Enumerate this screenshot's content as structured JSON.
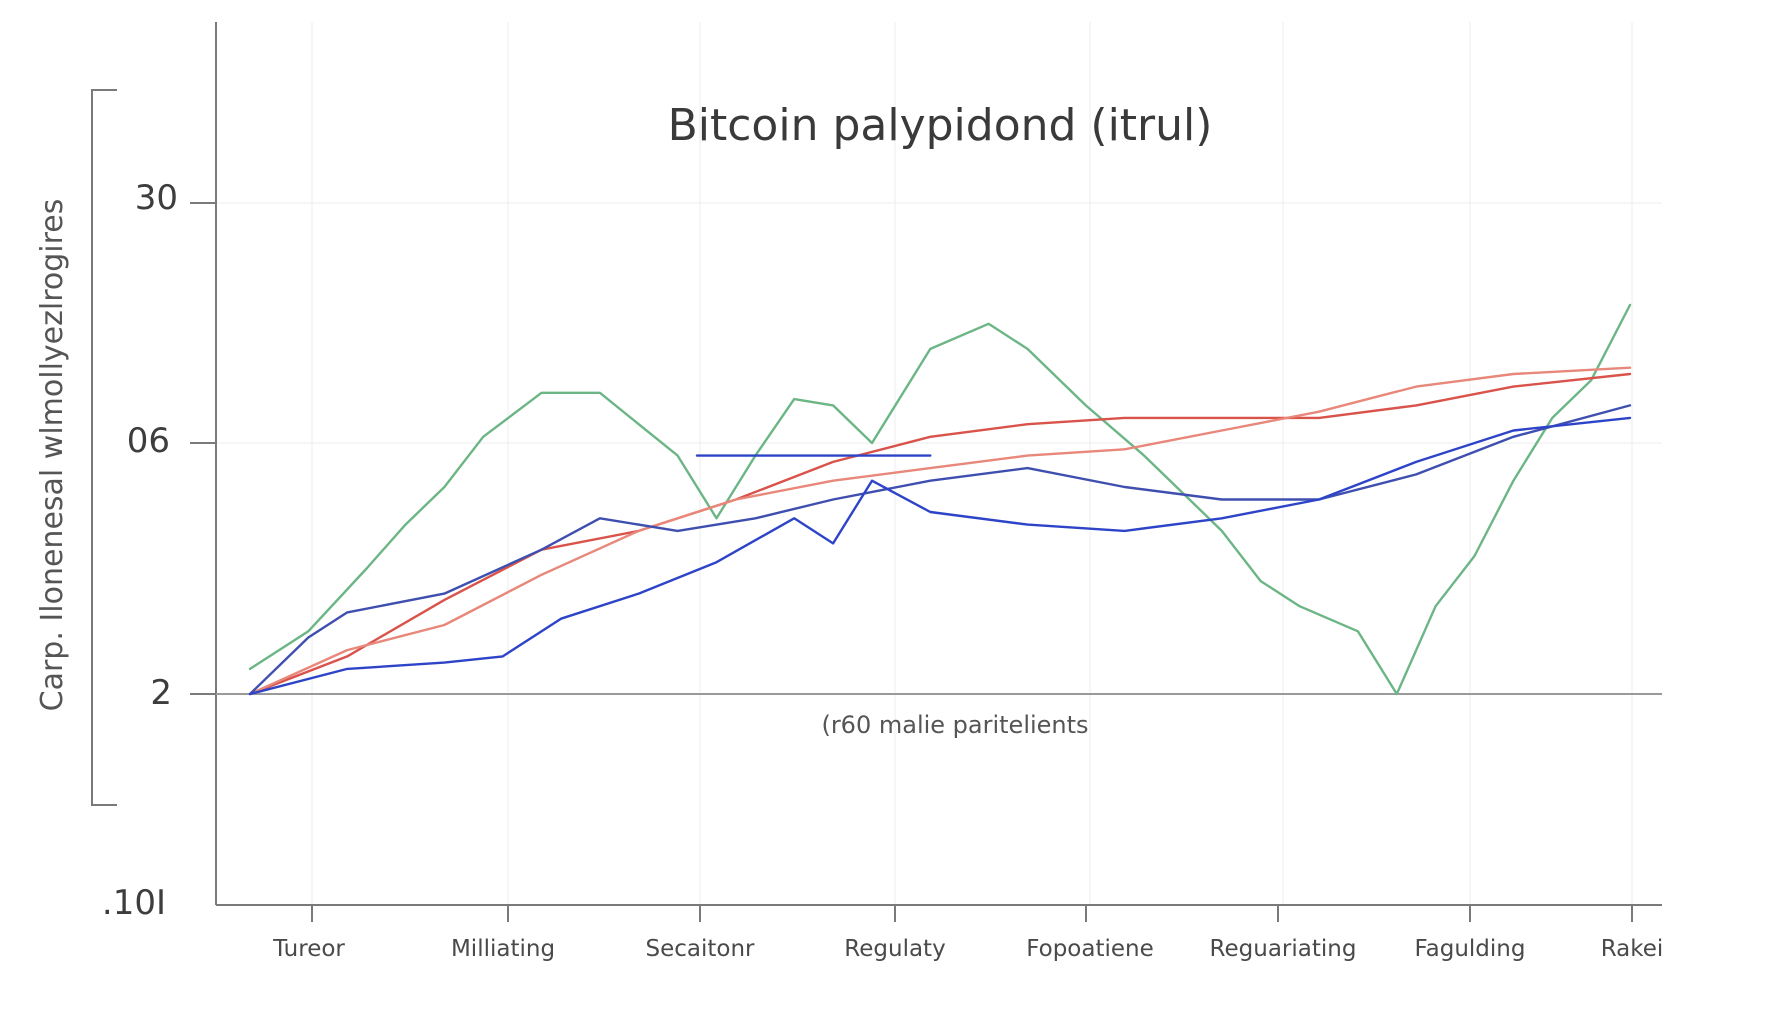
{
  "chart_data": {
    "type": "line",
    "title": "Bitcoin palypidond (itrul)",
    "ylabel": "Carp. Ilonenesal wlmollyezlrogires",
    "annotation": "(r60 malie paritelients",
    "ytick_labels": [
      "30",
      "06",
      "2",
      ".10I"
    ],
    "categories": [
      "Tureor",
      "Milliating",
      "Secaitonr",
      "Regulaty",
      "Fopoatiene",
      "Reguariating",
      "Fagulding",
      "Rakei"
    ],
    "grid": true,
    "colors": {
      "green": "#6cb585",
      "red": "#d9534a",
      "salmon": "#e8877a",
      "navy": "#3f4fb0",
      "blue": "#2e44c8"
    },
    "series": [
      {
        "color": "green",
        "x": [
          0.0,
          0.3,
          0.6,
          0.8,
          1.0,
          1.2,
          1.5,
          1.8,
          2.0,
          2.2,
          2.4,
          2.6,
          2.8,
          3.0,
          3.2,
          3.5,
          3.8,
          4.0,
          4.3,
          4.6,
          4.8,
          5.0,
          5.2,
          5.4,
          5.7,
          5.9,
          6.1,
          6.3,
          6.5,
          6.7,
          6.9,
          7.1
        ],
        "y": [
          2.0,
          5.0,
          10.0,
          13.5,
          16.5,
          20.5,
          24.0,
          24.0,
          21.5,
          19.0,
          14.0,
          19.0,
          23.5,
          23.0,
          20.0,
          27.5,
          29.5,
          27.5,
          23.0,
          19.0,
          16.0,
          13.0,
          9.0,
          7.0,
          5.0,
          0.0,
          7.0,
          11.0,
          17.0,
          22.0,
          25.0,
          31.0
        ]
      },
      {
        "color": "red",
        "x": [
          0.0,
          0.5,
          1.0,
          1.5,
          2.0,
          2.5,
          3.0,
          3.5,
          4.0,
          4.5,
          5.0,
          5.5,
          6.0,
          6.5,
          7.1
        ],
        "y": [
          0.0,
          3.0,
          7.5,
          11.5,
          13.0,
          15.5,
          18.5,
          20.5,
          21.5,
          22.0,
          22.0,
          22.0,
          23.0,
          24.5,
          25.5
        ]
      },
      {
        "color": "salmon",
        "x": [
          0.0,
          0.5,
          1.0,
          1.5,
          2.0,
          2.5,
          3.0,
          3.5,
          4.0,
          4.5,
          5.0,
          5.5,
          6.0,
          6.5,
          7.1
        ],
        "y": [
          0.0,
          3.5,
          5.5,
          9.5,
          13.0,
          15.5,
          17.0,
          18.0,
          19.0,
          19.5,
          21.0,
          22.5,
          24.5,
          25.5,
          26.0
        ]
      },
      {
        "color": "navy",
        "x": [
          0.0,
          0.3,
          0.5,
          1.0,
          1.5,
          1.8,
          2.2,
          2.6,
          3.0,
          3.5,
          4.0,
          4.5,
          5.0,
          5.5,
          6.0,
          6.5,
          7.1
        ],
        "y": [
          0.0,
          4.5,
          6.5,
          8.0,
          11.5,
          14.0,
          13.0,
          14.0,
          15.5,
          17.0,
          18.0,
          16.5,
          15.5,
          15.5,
          17.5,
          20.5,
          23.0
        ]
      },
      {
        "color": "blue",
        "x": [
          0.0,
          0.5,
          1.0,
          1.3,
          1.6,
          2.0,
          2.4,
          2.8,
          3.0,
          3.2,
          3.5,
          4.0,
          4.5,
          5.0,
          5.5,
          6.0,
          6.5,
          7.1
        ],
        "y": [
          0.0,
          2.0,
          2.5,
          3.0,
          6.0,
          8.0,
          10.5,
          14.0,
          12.0,
          17.0,
          14.5,
          13.5,
          13.0,
          14.0,
          15.5,
          18.5,
          21.0,
          22.0
        ]
      },
      {
        "color": "blue",
        "x": [
          2.3,
          3.5
        ],
        "y": [
          19.0,
          19.0
        ]
      }
    ]
  }
}
